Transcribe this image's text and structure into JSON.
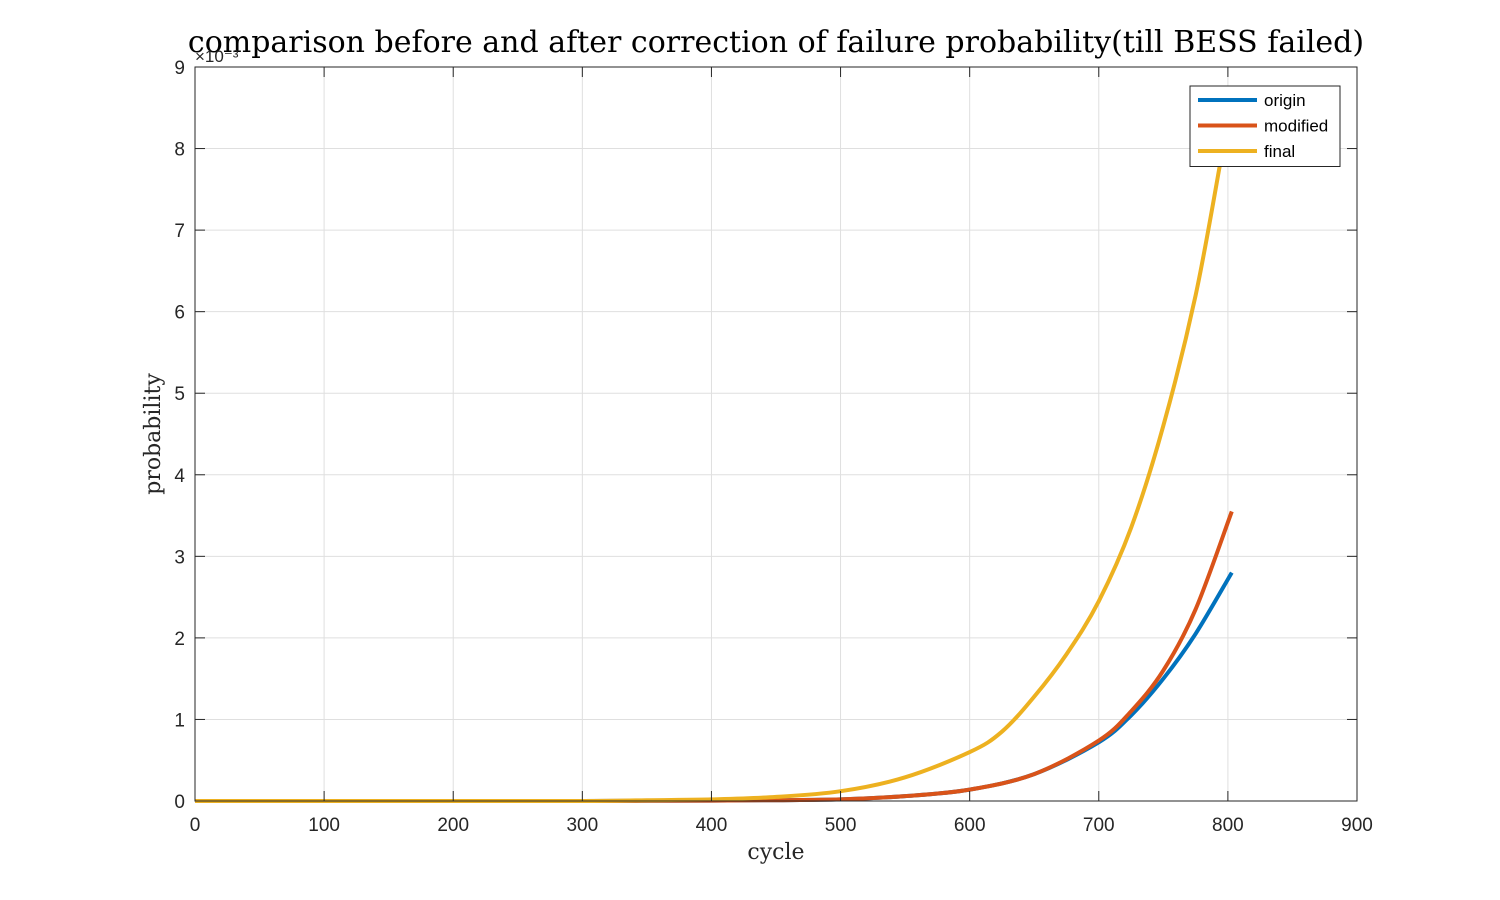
{
  "chart_data": {
    "type": "line",
    "title": "comparison before and after correction of failure probability(till BESS failed)",
    "xlabel": "cycle",
    "ylabel": "probability",
    "y_exponent_label": "×10⁻³",
    "xlim": [
      0,
      900
    ],
    "ylim": [
      0,
      9
    ],
    "x_ticks": [
      0,
      100,
      200,
      300,
      400,
      500,
      600,
      700,
      800,
      900
    ],
    "y_ticks": [
      0,
      1,
      2,
      3,
      4,
      5,
      6,
      7,
      8,
      9
    ],
    "grid": true,
    "legend_position": "top-right",
    "series": [
      {
        "name": "origin",
        "color": "#0072BD",
        "x": [
          0,
          100,
          200,
          300,
          350,
          400,
          450,
          500,
          550,
          600,
          650,
          700,
          725,
          750,
          775,
          803
        ],
        "y": [
          0,
          0,
          0,
          0,
          0.002,
          0.005,
          0.01,
          0.02,
          0.06,
          0.14,
          0.33,
          0.72,
          1.05,
          1.5,
          2.05,
          2.8
        ]
      },
      {
        "name": "modified",
        "color": "#D95319",
        "x": [
          0,
          100,
          200,
          300,
          350,
          400,
          450,
          500,
          550,
          600,
          650,
          700,
          725,
          750,
          775,
          803
        ],
        "y": [
          0,
          0,
          0,
          0,
          0.002,
          0.005,
          0.01,
          0.02,
          0.06,
          0.14,
          0.33,
          0.74,
          1.1,
          1.6,
          2.35,
          3.55
        ]
      },
      {
        "name": "final",
        "color": "#EDB120",
        "x": [
          0,
          100,
          200,
          300,
          350,
          400,
          450,
          500,
          550,
          600,
          625,
          650,
          675,
          700,
          725,
          750,
          775,
          795
        ],
        "y": [
          0,
          0,
          0,
          0,
          0.01,
          0.02,
          0.05,
          0.12,
          0.29,
          0.6,
          0.85,
          1.28,
          1.8,
          2.45,
          3.35,
          4.6,
          6.2,
          7.9
        ]
      }
    ]
  }
}
